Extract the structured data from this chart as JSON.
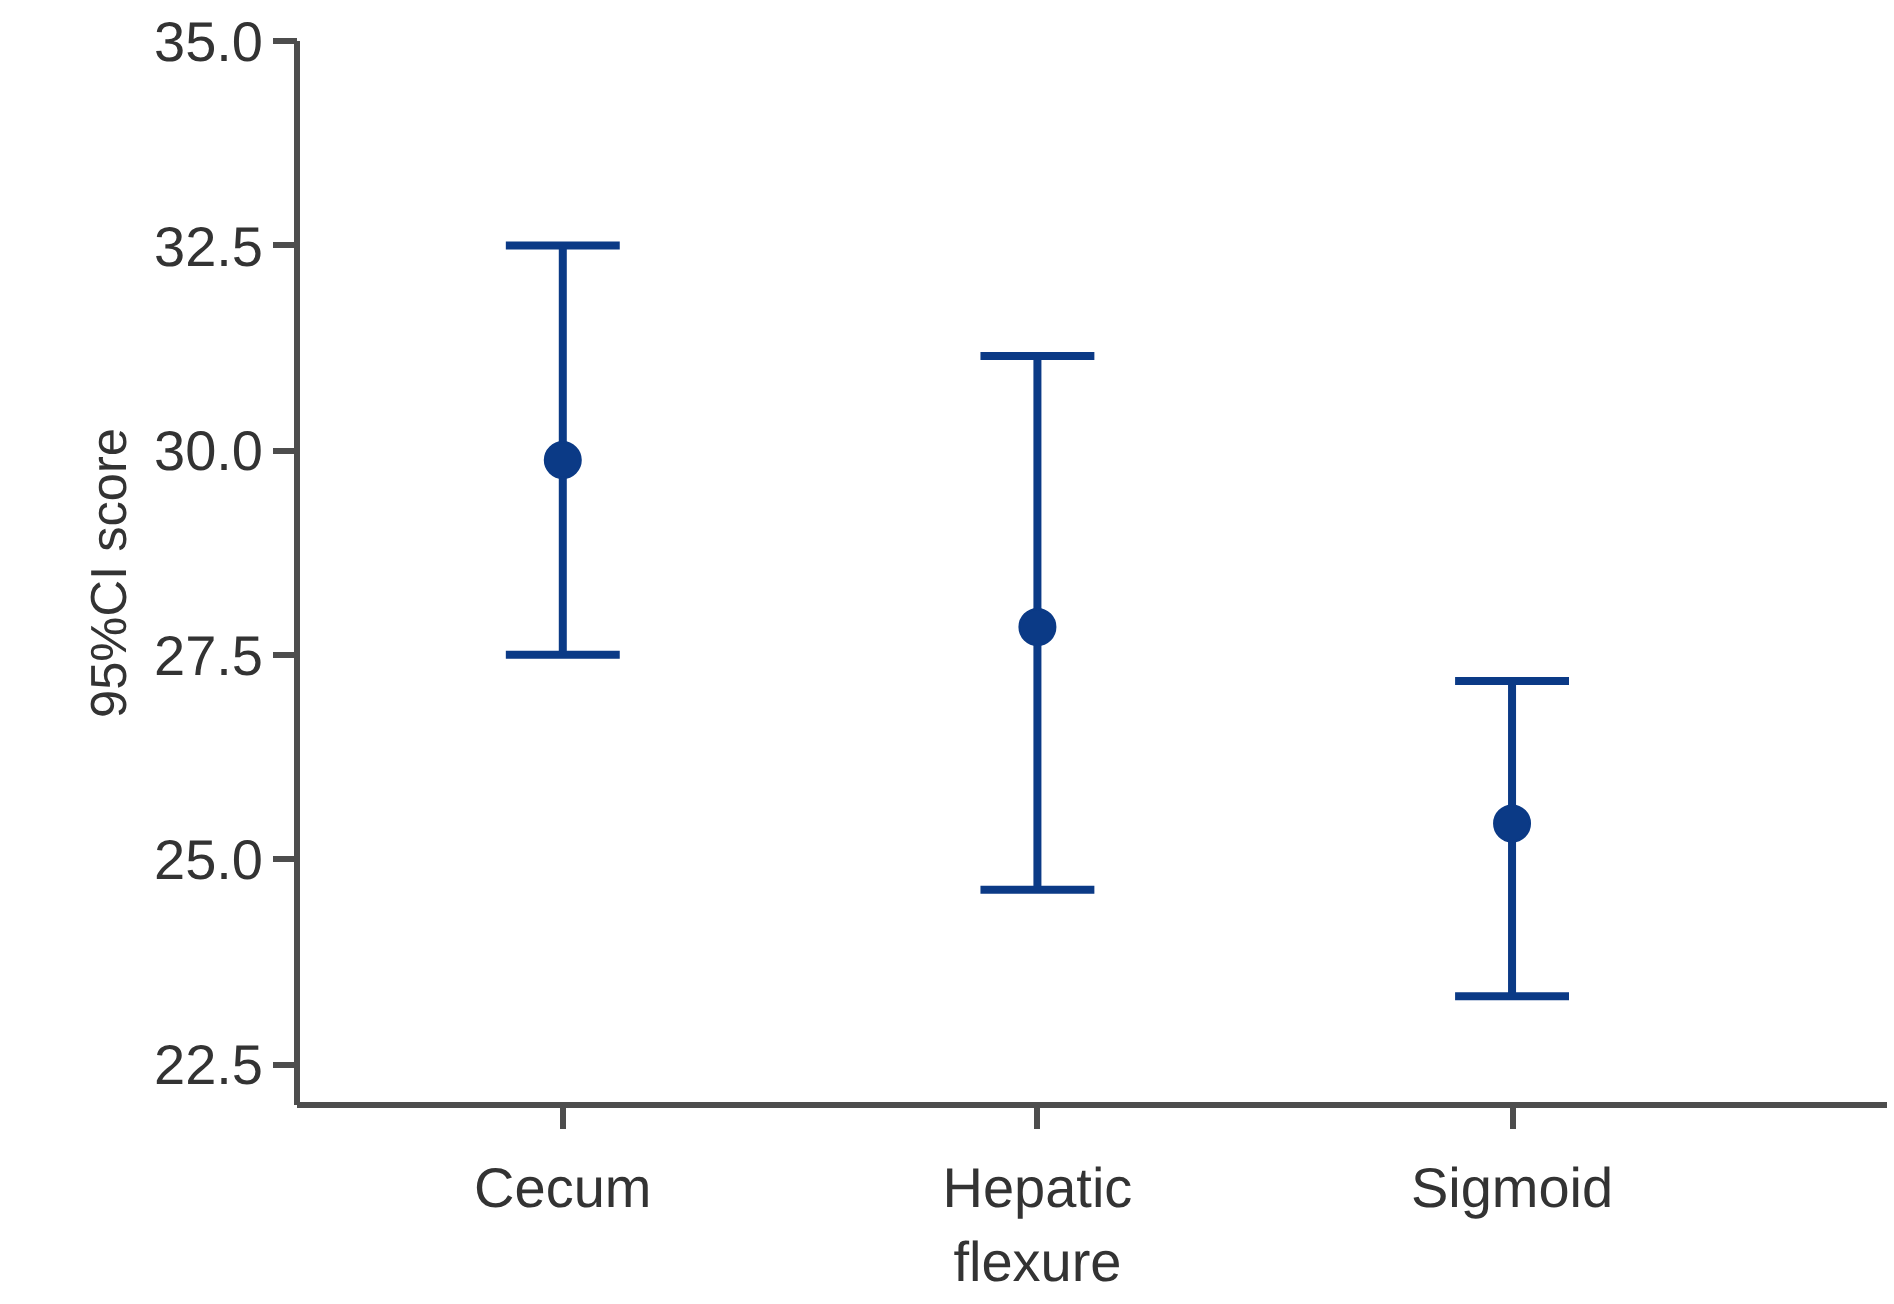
{
  "chart_data": {
    "type": "scatter",
    "ylabel": "95%CI score",
    "categories": [
      "Cecum",
      "Hepatic\nflexure",
      "Sigmoid"
    ],
    "color": "#0b3a86",
    "values": [
      29.88,
      27.84,
      25.44
    ],
    "errors": [
      [
        27.5,
        32.5
      ],
      [
        24.63,
        31.15
      ],
      [
        23.33,
        27.18
      ]
    ],
    "ylim": [
      22.0,
      35.0
    ],
    "yticks": [
      {
        "value": 22.5,
        "label": "22.5"
      },
      {
        "value": 25,
        "label": "25.0"
      },
      {
        "value": 27.5,
        "label": "27.5"
      },
      {
        "value": 30,
        "label": "30.0"
      },
      {
        "value": 32.5,
        "label": "32.5"
      },
      {
        "value": 35,
        "label": "35.0"
      }
    ],
    "grid": false,
    "marker": "circle"
  }
}
